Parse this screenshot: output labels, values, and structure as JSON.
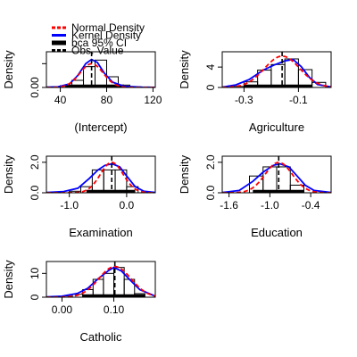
{
  "legend": {
    "placement": "top-left",
    "entries": [
      {
        "label": "Normal Density",
        "color": "#ff0000",
        "style": "dashed"
      },
      {
        "label": "Kernel Density",
        "color": "#0000ff",
        "style": "solid"
      },
      {
        "label": "bca 95% CI",
        "color": "#000000",
        "style": "thick"
      },
      {
        "label": "Obs. Value",
        "color": "#000000",
        "style": "dashed-vertical"
      }
    ]
  },
  "colors": {
    "normal": "#ff0000",
    "kernel": "#0000ff",
    "ci": "#000000",
    "bars": "#000000"
  },
  "chart_data": [
    {
      "type": "bar",
      "title": "",
      "xlabel": "(Intercept)",
      "ylabel": "Density",
      "xlim": [
        28,
        122
      ],
      "ylim": [
        0,
        0.06
      ],
      "xticks": [
        40,
        80,
        120
      ],
      "xtick_labels": [
        "40",
        "80",
        "120"
      ],
      "yticks": [
        0.0,
        0.04
      ],
      "ytick_labels": [
        "0.00",
        ""
      ],
      "bins": [
        30,
        40,
        50,
        60,
        70,
        80,
        90,
        100,
        110,
        120
      ],
      "hist": [
        0.0005,
        0.003,
        0.012,
        0.035,
        0.046,
        0.018,
        0.004,
        0.001,
        0.0005
      ],
      "normal": {
        "mean": 67,
        "sd": 10
      },
      "kernel": [
        [
          28,
          0.0004
        ],
        [
          38,
          0.001
        ],
        [
          48,
          0.006
        ],
        [
          55,
          0.02
        ],
        [
          62,
          0.04
        ],
        [
          67,
          0.047
        ],
        [
          72,
          0.042
        ],
        [
          78,
          0.024
        ],
        [
          85,
          0.009
        ],
        [
          95,
          0.002
        ],
        [
          110,
          0.0006
        ],
        [
          122,
          0.0002
        ]
      ],
      "ci": [
        44,
        95
      ],
      "obs": 67
    },
    {
      "type": "bar",
      "title": "",
      "xlabel": "Agriculture",
      "ylabel": "Density",
      "xlim": [
        -0.38,
        0.02
      ],
      "ylim": [
        0,
        7
      ],
      "xticks": [
        -0.3,
        -0.1
      ],
      "xtick_labels": [
        "-0.3",
        "-0.1"
      ],
      "yticks": [
        0,
        4
      ],
      "ytick_labels": [
        "0",
        "4"
      ],
      "bins": [
        -0.35,
        -0.3,
        -0.25,
        -0.2,
        -0.15,
        -0.1,
        -0.05,
        0.0
      ],
      "hist": [
        0.2,
        1.1,
        3.4,
        4.5,
        5.6,
        3.5,
        1.0
      ],
      "normal": {
        "mean": -0.16,
        "sd": 0.065
      },
      "kernel": [
        [
          -0.38,
          0.05
        ],
        [
          -0.33,
          0.5
        ],
        [
          -0.28,
          1.6
        ],
        [
          -0.23,
          3.4
        ],
        [
          -0.19,
          4.4
        ],
        [
          -0.15,
          5.2
        ],
        [
          -0.12,
          5.5
        ],
        [
          -0.09,
          4.1
        ],
        [
          -0.06,
          2.0
        ],
        [
          -0.03,
          0.6
        ],
        [
          0.02,
          0.1
        ]
      ],
      "ci": [
        -0.3,
        -0.05
      ],
      "obs": -0.16
    },
    {
      "type": "bar",
      "title": "",
      "xlabel": "Examination",
      "ylabel": "Density",
      "xlim": [
        -1.4,
        0.5
      ],
      "ylim": [
        0,
        2.4
      ],
      "xticks": [
        -1.0,
        0.0
      ],
      "xtick_labels": [
        "-1.0",
        "0.0"
      ],
      "yticks": [
        0.0,
        2.0
      ],
      "ytick_labels": [
        "0.0",
        "2.0"
      ],
      "bins": [
        -1.0,
        -0.8,
        -0.6,
        -0.4,
        -0.2,
        0.0,
        0.2
      ],
      "hist": [
        0.1,
        0.4,
        1.5,
        1.5,
        1.5,
        0.4
      ],
      "normal": {
        "mean": -0.26,
        "sd": 0.2
      },
      "kernel": [
        [
          -1.4,
          0.02
        ],
        [
          -1.1,
          0.08
        ],
        [
          -0.85,
          0.3
        ],
        [
          -0.65,
          0.95
        ],
        [
          -0.5,
          1.5
        ],
        [
          -0.38,
          1.8
        ],
        [
          -0.25,
          1.9
        ],
        [
          -0.12,
          1.7
        ],
        [
          0.0,
          1.1
        ],
        [
          0.15,
          0.4
        ],
        [
          0.3,
          0.1
        ],
        [
          0.5,
          0.02
        ]
      ],
      "ci": [
        -0.7,
        0.15
      ],
      "obs": -0.26
    },
    {
      "type": "bar",
      "title": "",
      "xlabel": "Education",
      "ylabel": "Density",
      "xlim": [
        -1.7,
        -0.1
      ],
      "ylim": [
        0,
        2.4
      ],
      "xticks": [
        -1.6,
        -1.0,
        -0.4
      ],
      "xtick_labels": [
        "-1.6",
        "-1.0",
        "-0.4"
      ],
      "yticks": [
        0.0,
        2.0
      ],
      "ytick_labels": [
        "0.0",
        "2.0"
      ],
      "bins": [
        -1.3,
        -1.1,
        -0.9,
        -0.7,
        -0.5
      ],
      "hist": [
        1.1,
        1.7,
        1.7,
        0.5
      ],
      "normal": {
        "mean": -0.87,
        "sd": 0.2
      },
      "kernel": [
        [
          -1.7,
          0.02
        ],
        [
          -1.45,
          0.15
        ],
        [
          -1.25,
          0.75
        ],
        [
          -1.1,
          1.35
        ],
        [
          -0.95,
          1.8
        ],
        [
          -0.85,
          1.9
        ],
        [
          -0.72,
          1.7
        ],
        [
          -0.6,
          1.1
        ],
        [
          -0.48,
          0.5
        ],
        [
          -0.35,
          0.15
        ],
        [
          -0.1,
          0.02
        ]
      ],
      "ci": [
        -1.25,
        -0.5
      ],
      "obs": -0.87
    },
    {
      "type": "bar",
      "title": "",
      "xlabel": "Catholic",
      "ylabel": "Density",
      "xlim": [
        -0.03,
        0.18
      ],
      "ylim": [
        0,
        15
      ],
      "xticks": [
        0.0,
        0.1
      ],
      "xtick_labels": [
        "0.00",
        "0.10"
      ],
      "yticks": [
        0,
        10
      ],
      "ytick_labels": [
        "0",
        "10"
      ],
      "bins": [
        0.0,
        0.02,
        0.04,
        0.06,
        0.08,
        0.1,
        0.12,
        0.14,
        0.16
      ],
      "hist": [
        0.5,
        1.2,
        3.2,
        7.5,
        10.0,
        12.5,
        7.5,
        1.5
      ],
      "normal": {
        "mean": 0.102,
        "sd": 0.031
      },
      "kernel": [
        [
          -0.03,
          0.1
        ],
        [
          0.0,
          0.4
        ],
        [
          0.03,
          1.6
        ],
        [
          0.05,
          3.8
        ],
        [
          0.07,
          7.8
        ],
        [
          0.09,
          11.2
        ],
        [
          0.1,
          12.5
        ],
        [
          0.115,
          11.0
        ],
        [
          0.13,
          7.5
        ],
        [
          0.15,
          3.2
        ],
        [
          0.18,
          0.4
        ]
      ],
      "ci": [
        0.04,
        0.16
      ],
      "obs": 0.102
    }
  ]
}
